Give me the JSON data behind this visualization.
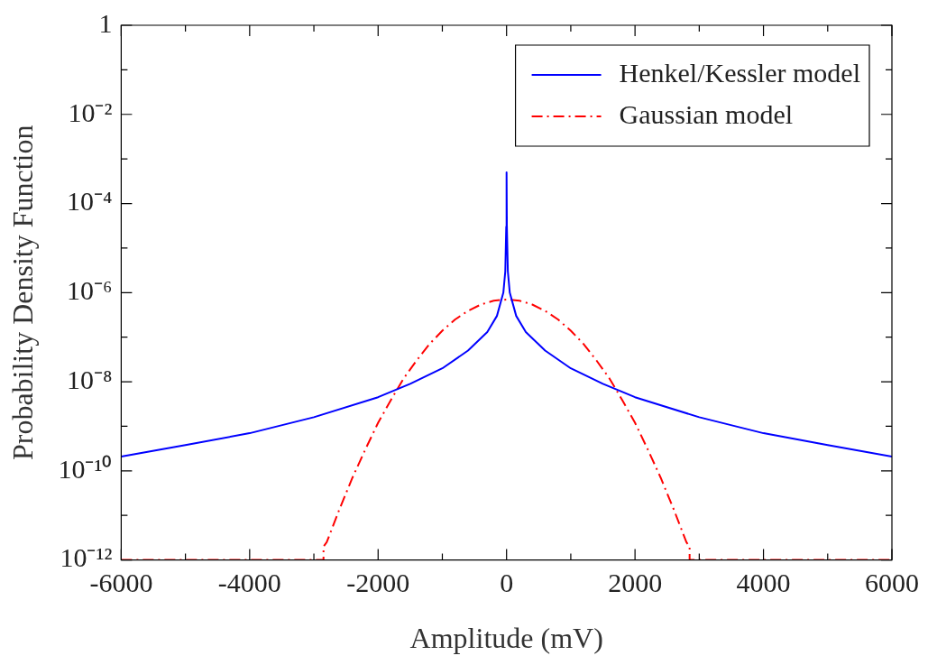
{
  "chart_data": {
    "type": "line",
    "xlabel": "Amplitude (mV)",
    "ylabel": "Probability Density Function",
    "xlim": [
      -6000,
      6000
    ],
    "xticks": [
      -6000,
      {
        "value": -5000,
        "label": null
      },
      -4000,
      {
        "value": -3000,
        "label": null
      },
      -2000,
      {
        "value": -1000,
        "label": null
      },
      0,
      {
        "value": 1000,
        "label": null
      },
      2000,
      {
        "value": 3000,
        "label": null
      },
      4000,
      {
        "value": 5000,
        "label": null
      },
      6000
    ],
    "ylim": [
      1e-12,
      1
    ],
    "yticks": [
      {
        "value": 1e-12,
        "label": "10⁻¹²"
      },
      {
        "value": 1e-11,
        "label": null
      },
      {
        "value": 1e-10,
        "label": "10⁻¹⁰"
      },
      {
        "value": 1e-09,
        "label": null
      },
      {
        "value": 1e-08,
        "label": "10⁻⁸"
      },
      {
        "value": 1e-07,
        "label": null
      },
      {
        "value": 1e-06,
        "label": "10⁻⁶"
      },
      {
        "value": 1e-05,
        "label": null
      },
      {
        "value": 0.0001,
        "label": "10⁻⁴"
      },
      {
        "value": 0.001,
        "label": null
      },
      {
        "value": 0.01,
        "label": "10⁻²"
      },
      {
        "value": 0.1,
        "label": null
      },
      1
    ],
    "log": "y",
    "grid": false,
    "legend": "top right",
    "marker": "none",
    "series": [
      {
        "name": "Henkel/Kessler model",
        "color": "#0000ff",
        "line_style": "solid",
        "x": [
          -6000,
          -5000,
          -4000,
          -3000,
          -2000,
          -1500,
          -1000,
          -600,
          -300,
          -150,
          -50,
          -20,
          -5,
          0,
          5,
          20,
          50,
          150,
          300,
          600,
          1000,
          1500,
          2000,
          3000,
          4000,
          5000,
          6000
        ],
        "values": [
          2.1e-10,
          3.8e-10,
          7e-10,
          1.6e-09,
          4.5e-09,
          9e-09,
          2e-08,
          5e-08,
          1.3e-07,
          3e-07,
          1e-06,
          3e-06,
          3e-05,
          0.0005,
          3e-05,
          3e-06,
          1e-06,
          3e-07,
          1.3e-07,
          5e-08,
          2e-08,
          9e-09,
          4.5e-09,
          1.6e-09,
          7e-10,
          3.8e-10,
          2.1e-10
        ]
      },
      {
        "name": "Gaussian model",
        "color": "#ff0000",
        "line_style": "dashed",
        "x": [
          -6000,
          -2850,
          -2850,
          -2800,
          -2600,
          -2400,
          -2200,
          -2000,
          -1800,
          -1600,
          -1400,
          -1200,
          -1000,
          -800,
          -600,
          -400,
          -200,
          0,
          200,
          400,
          600,
          800,
          1000,
          1200,
          1400,
          1600,
          1800,
          2000,
          2200,
          2400,
          2600,
          2800,
          2850,
          2850,
          6000
        ],
        "values": [
          1e-12,
          1e-12,
          2e-12,
          2.5e-12,
          1.4e-11,
          7e-11,
          3e-10,
          1.2e-09,
          3.9e-09,
          1.2e-08,
          3e-08,
          7e-08,
          1.4e-07,
          2.5e-07,
          3.9e-07,
          5.4e-07,
          6.6e-07,
          7e-07,
          6.6e-07,
          5.4e-07,
          3.9e-07,
          2.5e-07,
          1.4e-07,
          7e-08,
          3e-08,
          1.2e-08,
          3.9e-09,
          1.2e-09,
          3e-10,
          7e-11,
          1.4e-11,
          2.5e-12,
          2e-12,
          1e-12,
          1e-12
        ]
      }
    ]
  }
}
